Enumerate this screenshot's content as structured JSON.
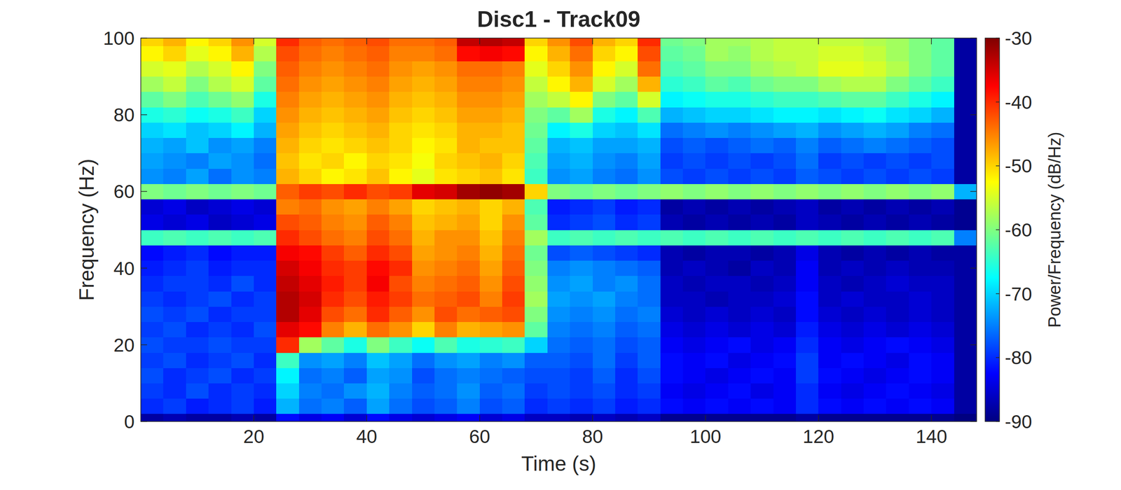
{
  "chart_data": {
    "type": "heatmap",
    "title": "Disc1 - Track09",
    "x_label": "Time (s)",
    "y_label": "Frequency (Hz)",
    "x": [
      2,
      6,
      10,
      14,
      18,
      22,
      26,
      30,
      34,
      38,
      42,
      46,
      50,
      54,
      58,
      62,
      66,
      70,
      74,
      78,
      82,
      86,
      90,
      94,
      98,
      102,
      106,
      110,
      114,
      118,
      122,
      126,
      130,
      134,
      138,
      142,
      146
    ],
    "y": [
      0,
      4,
      8,
      12,
      16,
      20,
      24,
      28,
      32,
      36,
      40,
      44,
      48,
      52,
      56,
      60,
      64,
      68,
      72,
      76,
      80,
      84,
      88,
      92,
      96,
      100
    ],
    "z": [
      [
        -88,
        -87,
        -88,
        -88,
        -87,
        -88,
        -82,
        -84,
        -83,
        -85,
        -82,
        -84,
        -85,
        -84,
        -83,
        -85,
        -84,
        -86,
        -86,
        -87,
        -86,
        -87,
        -86,
        -89,
        -89,
        -89,
        -89,
        -89,
        -89,
        -88,
        -89,
        -89,
        -89,
        -89,
        -89,
        -89,
        -90
      ],
      [
        -80,
        -79,
        -81,
        -80,
        -79,
        -81,
        -72,
        -76,
        -75,
        -77,
        -73,
        -76,
        -78,
        -77,
        -75,
        -78,
        -77,
        -80,
        -79,
        -80,
        -79,
        -81,
        -80,
        -82,
        -83,
        -82,
        -83,
        -82,
        -83,
        -80,
        -82,
        -83,
        -82,
        -83,
        -82,
        -83,
        -88
      ],
      [
        -79,
        -80,
        -78,
        -80,
        -79,
        -80,
        -70,
        -75,
        -76,
        -74,
        -72,
        -75,
        -77,
        -76,
        -74,
        -77,
        -76,
        -79,
        -78,
        -79,
        -78,
        -80,
        -79,
        -83,
        -84,
        -83,
        -82,
        -84,
        -83,
        -80,
        -83,
        -84,
        -83,
        -82,
        -83,
        -84,
        -88
      ],
      [
        -78,
        -80,
        -79,
        -78,
        -80,
        -79,
        -68,
        -76,
        -75,
        -77,
        -73,
        -74,
        -78,
        -76,
        -75,
        -76,
        -77,
        -78,
        -78,
        -79,
        -77,
        -80,
        -78,
        -82,
        -83,
        -84,
        -83,
        -82,
        -83,
        -79,
        -82,
        -83,
        -84,
        -83,
        -82,
        -83,
        -88
      ],
      [
        -79,
        -78,
        -80,
        -79,
        -78,
        -80,
        -64,
        -74,
        -73,
        -75,
        -71,
        -73,
        -76,
        -74,
        -73,
        -75,
        -74,
        -77,
        -77,
        -78,
        -76,
        -79,
        -77,
        -82,
        -83,
        -82,
        -84,
        -83,
        -82,
        -79,
        -83,
        -82,
        -83,
        -84,
        -82,
        -83,
        -88
      ],
      [
        -78,
        -79,
        -79,
        -78,
        -79,
        -79,
        -40,
        -58,
        -62,
        -66,
        -60,
        -64,
        -67,
        -63,
        -66,
        -65,
        -64,
        -70,
        -76,
        -77,
        -76,
        -78,
        -77,
        -83,
        -84,
        -83,
        -82,
        -84,
        -83,
        -80,
        -83,
        -84,
        -83,
        -82,
        -83,
        -84,
        -88
      ],
      [
        -79,
        -78,
        -80,
        -79,
        -80,
        -78,
        -36,
        -38,
        -45,
        -48,
        -44,
        -46,
        -50,
        -45,
        -48,
        -47,
        -46,
        -62,
        -75,
        -76,
        -75,
        -77,
        -76,
        -84,
        -85,
        -84,
        -85,
        -84,
        -85,
        -81,
        -84,
        -85,
        -84,
        -85,
        -84,
        -85,
        -88
      ],
      [
        -78,
        -79,
        -78,
        -80,
        -79,
        -79,
        -33,
        -36,
        -42,
        -44,
        -40,
        -43,
        -46,
        -42,
        -44,
        -43,
        -42,
        -60,
        -74,
        -75,
        -74,
        -76,
        -75,
        -85,
        -86,
        -85,
        -86,
        -85,
        -86,
        -82,
        -85,
        -86,
        -85,
        -86,
        -85,
        -86,
        -88
      ],
      [
        -79,
        -80,
        -79,
        -78,
        -80,
        -79,
        -33,
        -35,
        -40,
        -42,
        -39,
        -41,
        -44,
        -43,
        -42,
        -45,
        -41,
        -58,
        -73,
        -74,
        -73,
        -75,
        -76,
        -86,
        -86,
        -87,
        -86,
        -86,
        -85,
        -82,
        -86,
        -85,
        -86,
        -86,
        -85,
        -86,
        -88
      ],
      [
        -80,
        -79,
        -79,
        -80,
        -78,
        -80,
        -34,
        -36,
        -39,
        -41,
        -37,
        -42,
        -45,
        -44,
        -43,
        -46,
        -42,
        -59,
        -74,
        -73,
        -75,
        -74,
        -76,
        -86,
        -87,
        -86,
        -86,
        -87,
        -86,
        -83,
        -86,
        -87,
        -86,
        -85,
        -86,
        -86,
        -88
      ],
      [
        -81,
        -80,
        -79,
        -81,
        -80,
        -80,
        -35,
        -37,
        -40,
        -41,
        -38,
        -40,
        -46,
        -45,
        -44,
        -47,
        -43,
        -60,
        -75,
        -74,
        -75,
        -76,
        -77,
        -87,
        -86,
        -87,
        -88,
        -86,
        -87,
        -83,
        -87,
        -86,
        -87,
        -86,
        -87,
        -87,
        -88
      ],
      [
        -82,
        -81,
        -80,
        -82,
        -81,
        -81,
        -37,
        -38,
        -41,
        -43,
        -40,
        -42,
        -47,
        -46,
        -45,
        -48,
        -44,
        -61,
        -78,
        -77,
        -78,
        -79,
        -80,
        -87,
        -88,
        -87,
        -87,
        -88,
        -87,
        -84,
        -87,
        -88,
        -87,
        -88,
        -87,
        -88,
        -88
      ],
      [
        -64,
        -63,
        -64,
        -63,
        -64,
        -63,
        -40,
        -42,
        -44,
        -45,
        -42,
        -44,
        -48,
        -46,
        -46,
        -49,
        -45,
        -58,
        -64,
        -63,
        -64,
        -63,
        -64,
        -63,
        -64,
        -63,
        -64,
        -63,
        -64,
        -63,
        -64,
        -63,
        -64,
        -63,
        -64,
        -63,
        -75
      ],
      [
        -84,
        -85,
        -84,
        -86,
        -85,
        -84,
        -42,
        -43,
        -45,
        -46,
        -43,
        -45,
        -49,
        -48,
        -47,
        -50,
        -46,
        -62,
        -80,
        -79,
        -78,
        -80,
        -79,
        -87,
        -88,
        -87,
        -88,
        -87,
        -88,
        -86,
        -87,
        -88,
        -87,
        -88,
        -87,
        -88,
        -89
      ],
      [
        -85,
        -84,
        -86,
        -85,
        -84,
        -85,
        -45,
        -44,
        -46,
        -47,
        -45,
        -47,
        -50,
        -49,
        -48,
        -50,
        -48,
        -63,
        -81,
        -80,
        -79,
        -81,
        -80,
        -88,
        -87,
        -88,
        -87,
        -88,
        -87,
        -86,
        -88,
        -87,
        -88,
        -87,
        -88,
        -87,
        -89
      ],
      [
        -60,
        -61,
        -60,
        -61,
        -60,
        -61,
        -43,
        -41,
        -42,
        -40,
        -42,
        -41,
        -36,
        -35,
        -32,
        -31,
        -32,
        -50,
        -60,
        -61,
        -60,
        -61,
        -60,
        -59,
        -60,
        -59,
        -60,
        -59,
        -60,
        -59,
        -60,
        -59,
        -60,
        -59,
        -60,
        -59,
        -72
      ],
      [
        -74,
        -75,
        -73,
        -76,
        -74,
        -75,
        -48,
        -50,
        -52,
        -51,
        -49,
        -52,
        -54,
        -51,
        -50,
        -49,
        -51,
        -64,
        -74,
        -73,
        -75,
        -76,
        -74,
        -78,
        -79,
        -78,
        -79,
        -78,
        -79,
        -77,
        -78,
        -79,
        -78,
        -79,
        -78,
        -79,
        -88
      ],
      [
        -73,
        -74,
        -75,
        -73,
        -74,
        -76,
        -49,
        -51,
        -50,
        -52,
        -50,
        -51,
        -53,
        -50,
        -49,
        -48,
        -50,
        -63,
        -73,
        -72,
        -74,
        -75,
        -73,
        -79,
        -78,
        -79,
        -78,
        -79,
        -78,
        -76,
        -79,
        -78,
        -79,
        -78,
        -79,
        -78,
        -88
      ],
      [
        -72,
        -73,
        -71,
        -74,
        -73,
        -75,
        -48,
        -50,
        -51,
        -50,
        -49,
        -50,
        -52,
        -51,
        -48,
        -49,
        -49,
        -62,
        -72,
        -71,
        -73,
        -73,
        -72,
        -78,
        -77,
        -78,
        -77,
        -76,
        -77,
        -75,
        -77,
        -76,
        -75,
        -76,
        -77,
        -78,
        -88
      ],
      [
        -70,
        -69,
        -71,
        -70,
        -68,
        -72,
        -47,
        -49,
        -50,
        -49,
        -48,
        -50,
        -51,
        -50,
        -48,
        -48,
        -49,
        -61,
        -68,
        -66,
        -70,
        -71,
        -69,
        -76,
        -75,
        -74,
        -75,
        -74,
        -73,
        -72,
        -74,
        -73,
        -72,
        -73,
        -75,
        -76,
        -88
      ],
      [
        -66,
        -65,
        -67,
        -66,
        -64,
        -70,
        -46,
        -48,
        -49,
        -48,
        -47,
        -49,
        -50,
        -49,
        -47,
        -47,
        -48,
        -60,
        -62,
        -58,
        -66,
        -68,
        -63,
        -72,
        -71,
        -70,
        -70,
        -69,
        -68,
        -68,
        -69,
        -68,
        -67,
        -69,
        -70,
        -72,
        -88
      ],
      [
        -62,
        -60,
        -63,
        -61,
        -59,
        -66,
        -45,
        -47,
        -48,
        -47,
        -46,
        -48,
        -49,
        -48,
        -46,
        -46,
        -47,
        -58,
        -56,
        -52,
        -60,
        -62,
        -55,
        -68,
        -67,
        -66,
        -66,
        -65,
        -64,
        -64,
        -63,
        -62,
        -62,
        -64,
        -66,
        -68,
        -88
      ],
      [
        -58,
        -56,
        -60,
        -57,
        -55,
        -62,
        -44,
        -46,
        -47,
        -46,
        -45,
        -47,
        -48,
        -47,
        -45,
        -45,
        -46,
        -56,
        -52,
        -48,
        -55,
        -58,
        -48,
        -65,
        -64,
        -62,
        -63,
        -61,
        -60,
        -60,
        -58,
        -57,
        -57,
        -60,
        -62,
        -64,
        -88
      ],
      [
        -55,
        -54,
        -57,
        -55,
        -52,
        -60,
        -43,
        -45,
        -46,
        -45,
        -44,
        -46,
        -47,
        -46,
        -44,
        -44,
        -45,
        -54,
        -50,
        -46,
        -52,
        -55,
        -44,
        -63,
        -62,
        -60,
        -60,
        -58,
        -57,
        -56,
        -54,
        -54,
        -55,
        -57,
        -60,
        -62,
        -88
      ],
      [
        -52,
        -50,
        -54,
        -52,
        -48,
        -57,
        -42,
        -44,
        -45,
        -44,
        -43,
        -45,
        -45,
        -44,
        -38,
        -37,
        -38,
        -52,
        -48,
        -44,
        -50,
        -52,
        -42,
        -62,
        -61,
        -58,
        -59,
        -57,
        -56,
        -56,
        -55,
        -55,
        -56,
        -58,
        -60,
        -62,
        -88
      ],
      [
        -50,
        -48,
        -52,
        -50,
        -46,
        -55,
        -40,
        -43,
        -44,
        -43,
        -42,
        -44,
        -44,
        -43,
        -34,
        -33,
        -34,
        -50,
        -46,
        -42,
        -48,
        -50,
        -40,
        -61,
        -60,
        -58,
        -58,
        -57,
        -56,
        -56,
        -56,
        -56,
        -57,
        -58,
        -60,
        -62,
        -88
      ]
    ],
    "xlim": [
      0,
      148
    ],
    "ylim": [
      0,
      100
    ],
    "xticks": [
      20,
      40,
      60,
      80,
      100,
      120,
      140
    ],
    "yticks": [
      0,
      20,
      40,
      60,
      80,
      100
    ],
    "colorbar": {
      "label": "Power/Frequency (dB/Hz)",
      "lim": [
        -90,
        -30
      ],
      "ticks": [
        -90,
        -80,
        -70,
        -60,
        -50,
        -40,
        -30
      ]
    }
  }
}
